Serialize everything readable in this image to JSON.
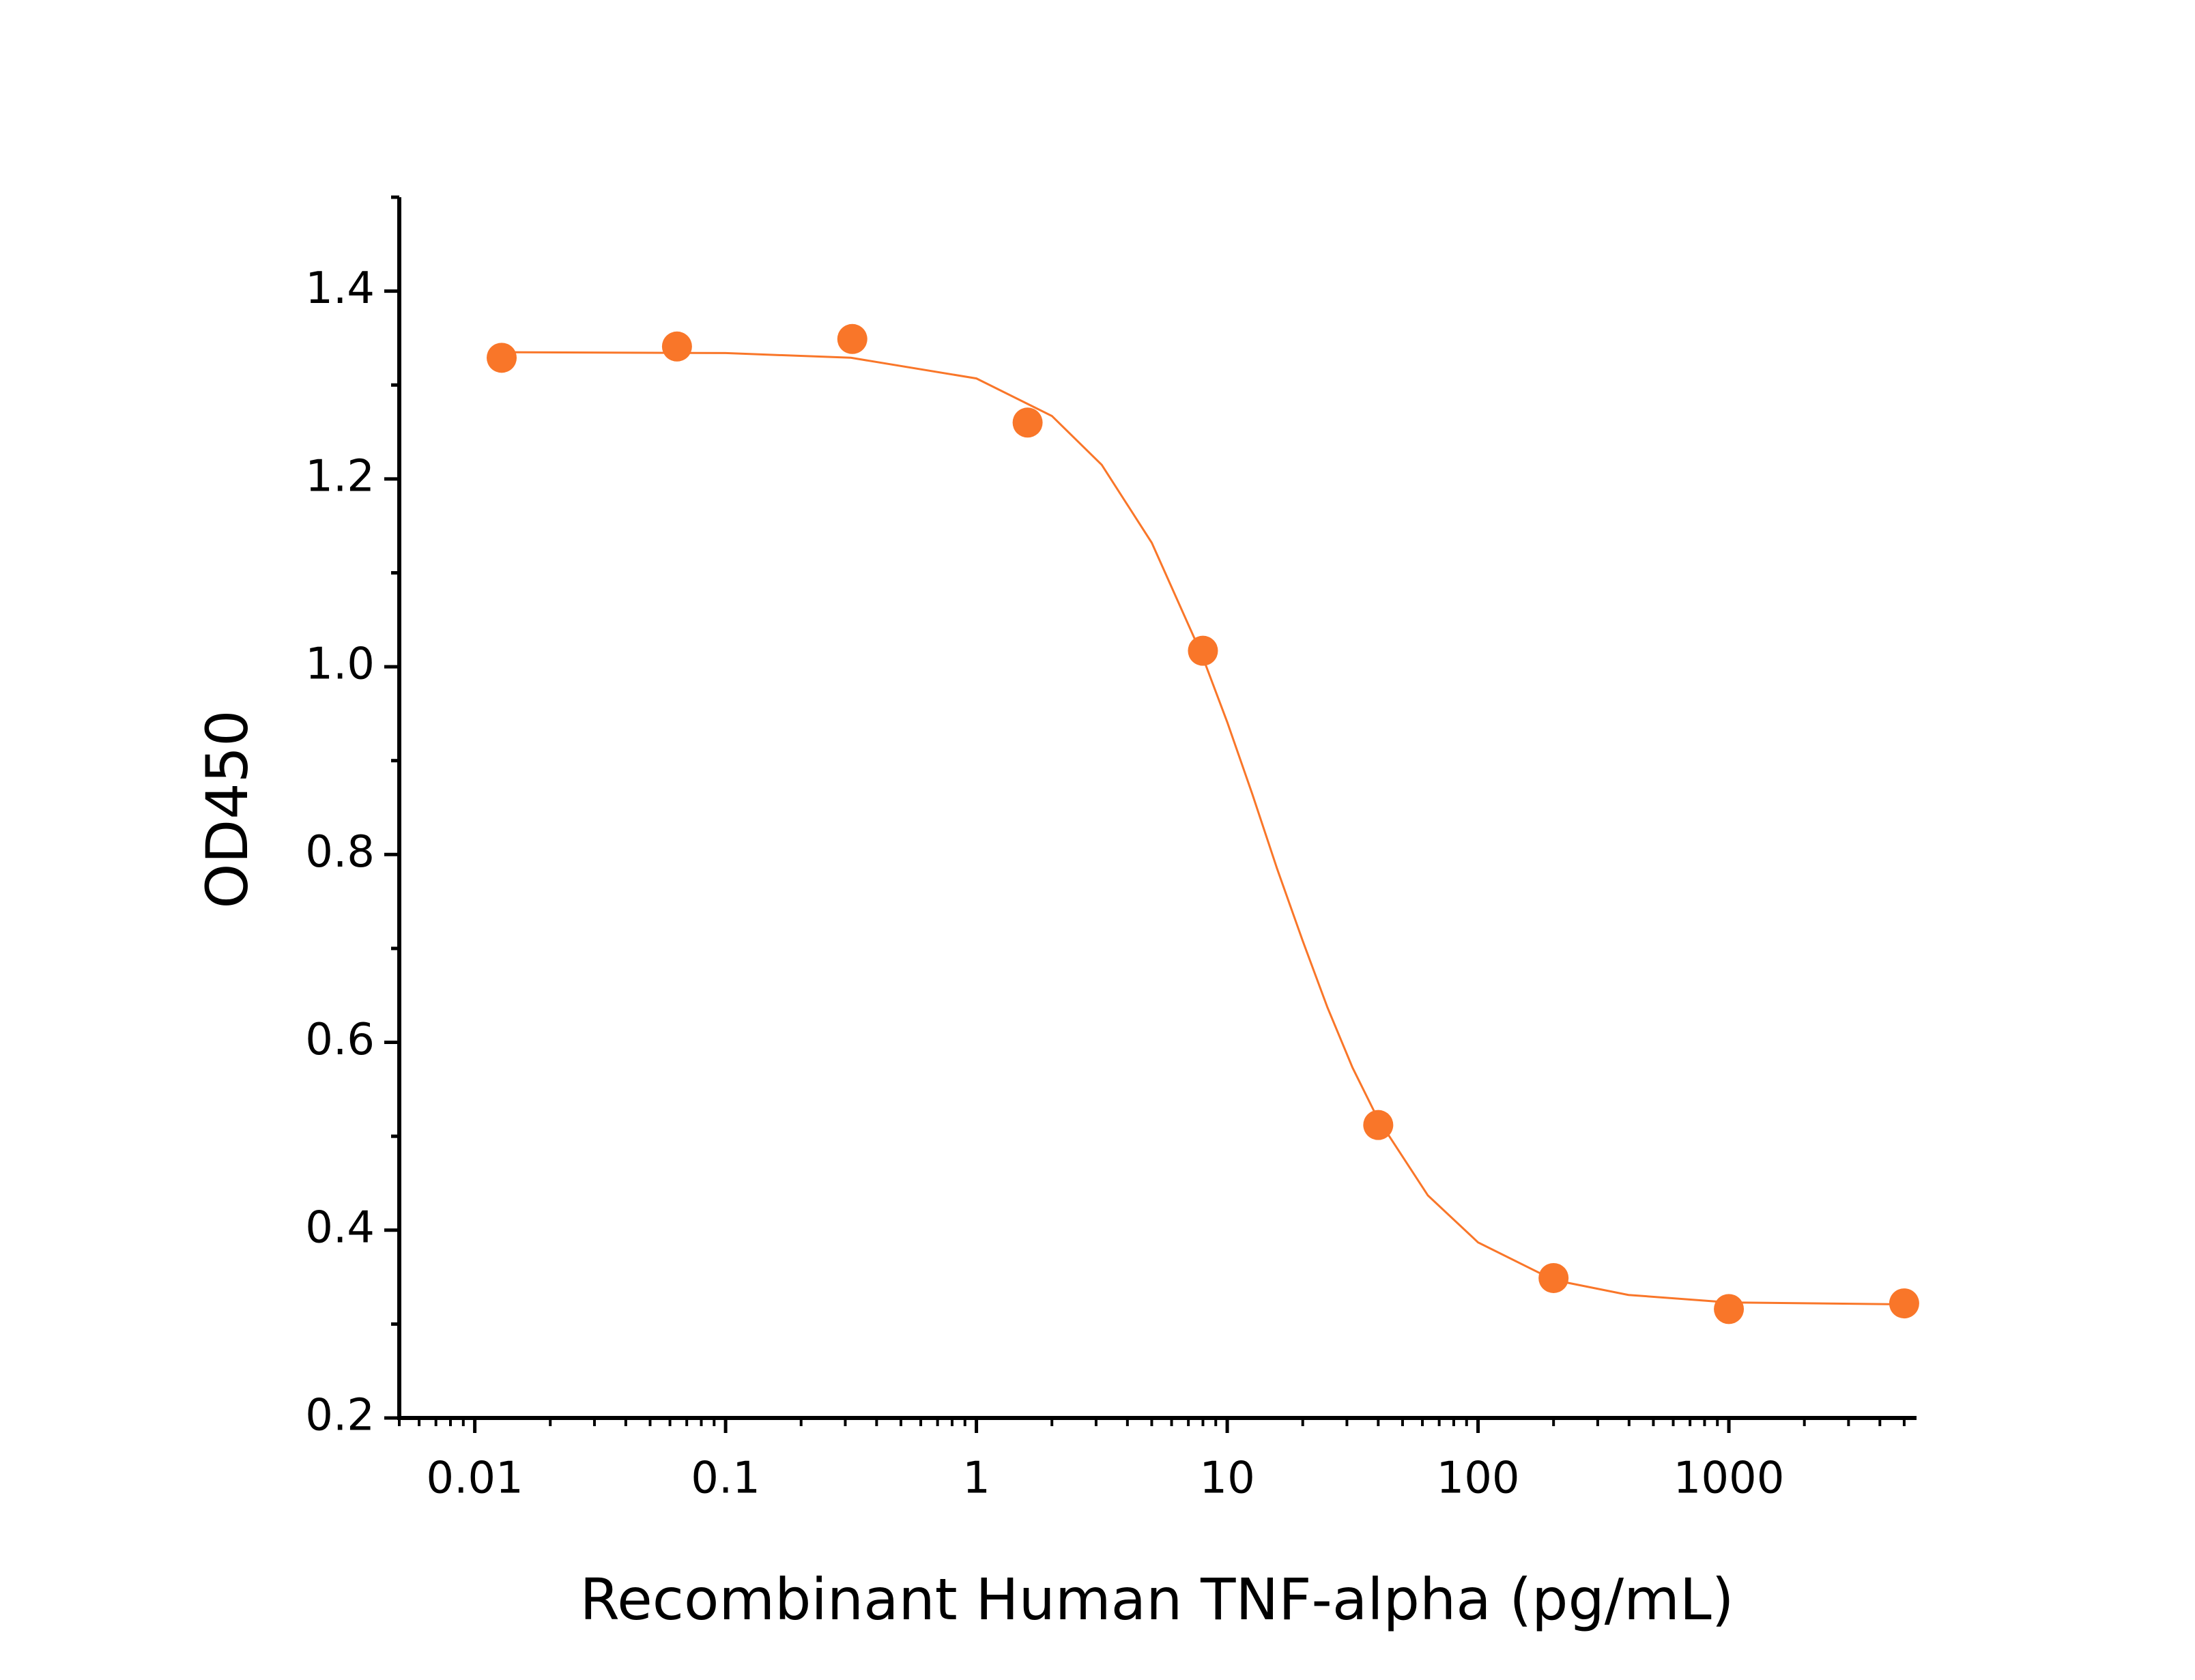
{
  "chart_data": {
    "type": "scatter",
    "x_label": "Recombinant Human TNF-alpha (pg/mL)",
    "y_label": "OD450",
    "xscale": "log",
    "xlim": [
      0.005,
      5600
    ],
    "xticks": [
      0.01,
      0.1,
      1,
      10,
      100,
      1000
    ],
    "ylim": [
      0.2,
      1.5
    ],
    "yticks": [
      {
        "value": 0.2,
        "label": "0.2"
      },
      0.4,
      0.6,
      0.8,
      {
        "value": 1.0,
        "label": "1.0"
      },
      1.2,
      1.4
    ],
    "grid": false,
    "series": [
      {
        "type": "scatter",
        "color": "#f97629",
        "x": [
          0.0128,
          0.064,
          0.32,
          1.6,
          8,
          40,
          200,
          1000,
          5000
        ],
        "values": [
          1.329,
          1.341,
          1.349,
          1.26,
          1.017,
          0.512,
          0.349,
          0.316,
          0.322
        ]
      },
      {
        "type": "line",
        "color": "#f97629",
        "x": [
          0.0128,
          0.1,
          0.316,
          1,
          2,
          3.16,
          5,
          7.94,
          10,
          12.6,
          15.8,
          20,
          25.1,
          31.6,
          39.8,
          63.1,
          100,
          200,
          398,
          1000,
          5000
        ],
        "values": [
          1.335,
          1.334,
          1.329,
          1.307,
          1.267,
          1.215,
          1.132,
          1.012,
          0.941,
          0.864,
          0.785,
          0.708,
          0.637,
          0.573,
          0.519,
          0.437,
          0.387,
          0.347,
          0.331,
          0.323,
          0.321
        ]
      }
    ]
  }
}
